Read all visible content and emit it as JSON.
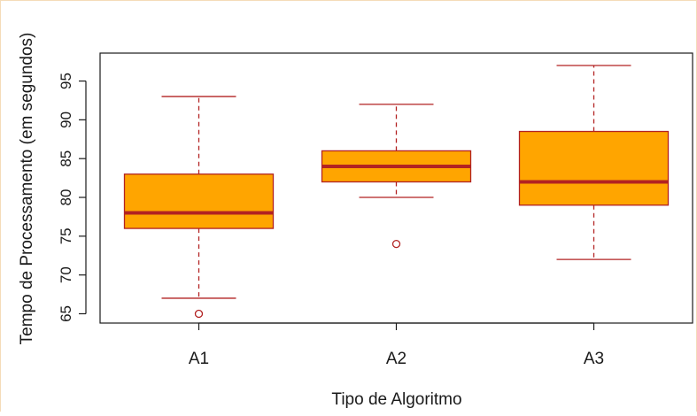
{
  "chart_data": {
    "type": "box",
    "xlabel": "Tipo de Algoritmo",
    "ylabel": "Tempo de Processamento (em segundos)",
    "ylim": [
      63.8,
      98.6
    ],
    "yticks": [
      65,
      70,
      75,
      80,
      85,
      90,
      95
    ],
    "categories": [
      "A1",
      "A2",
      "A3"
    ],
    "boxes": [
      {
        "category": "A1",
        "whisker_low": 67,
        "q1": 76,
        "median": 78,
        "q3": 83,
        "whisker_high": 93,
        "outliers": [
          65
        ]
      },
      {
        "category": "A2",
        "whisker_low": 80,
        "q1": 82,
        "median": 84,
        "q3": 86,
        "whisker_high": 92,
        "outliers": [
          74
        ]
      },
      {
        "category": "A3",
        "whisker_low": 72,
        "q1": 79,
        "median": 82,
        "q3": 88.5,
        "whisker_high": 97,
        "outliers": []
      }
    ],
    "colors": {
      "box_fill": "#ffa500",
      "box_border": "#b22222",
      "median": "#b22222",
      "whisker": "#b22222",
      "outlier": "#b22222",
      "axis": "#1a1a1a"
    }
  }
}
